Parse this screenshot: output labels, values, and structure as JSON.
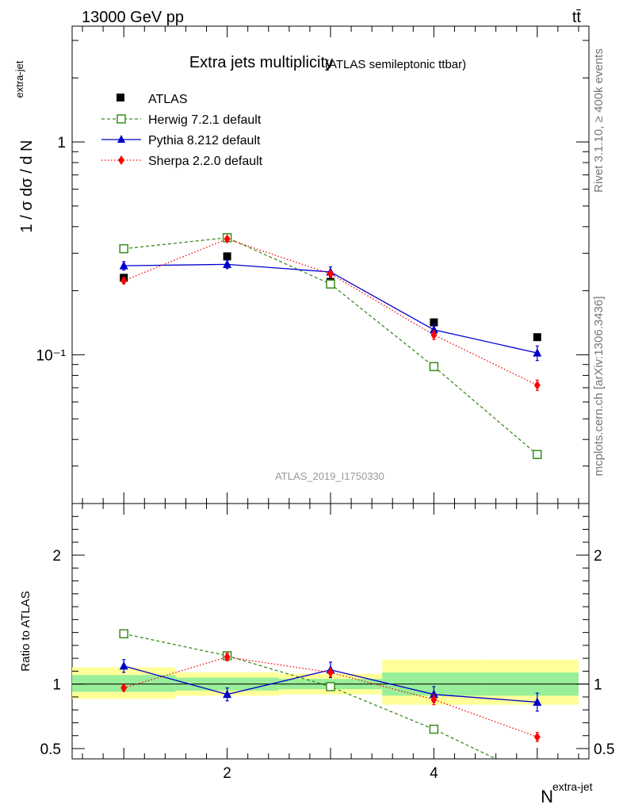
{
  "header": {
    "energy": "13000 GeV pp",
    "process": "tt̄"
  },
  "side_labels": {
    "rivet": "Rivet 3.1.10, ≥ 400k events",
    "mcplots": "mcplots.cern.ch [arXiv:1306.3436]"
  },
  "chart_data": [
    {
      "type": "line",
      "title": "Extra jets multiplicity",
      "subtitle": "(ATLAS semileptonic ttbar)",
      "ylabel_main": "1 / σ dσ / d N",
      "ylabel_sup": "extra-jet",
      "yscale": "log",
      "ylim": [
        0.02,
        3.5
      ],
      "xlim": [
        0.5,
        5.5
      ],
      "y_tick_labels": [
        "1",
        "10⁻¹"
      ],
      "y_ticks": [
        1,
        0.1
      ],
      "watermark": "ATLAS_2019_I1750330",
      "x": [
        1,
        2,
        3,
        4,
        5
      ],
      "series": [
        {
          "name": "ATLAS",
          "color": "#000000",
          "marker": "square-filled",
          "line": "none",
          "values": [
            0.23,
            0.29,
            0.22,
            0.142,
            0.121
          ],
          "errors": [
            0.006,
            0.006,
            0.005,
            0.004,
            0.004
          ]
        },
        {
          "name": "Herwig 7.2.1 default",
          "color": "#3a8c1f",
          "marker": "square-open",
          "line": "dashed",
          "values": [
            0.315,
            0.355,
            0.215,
            0.088,
            0.034
          ],
          "errors": [
            0.006,
            0.006,
            0.005,
            0.003,
            0.0015
          ]
        },
        {
          "name": "Pythia 8.212 default",
          "color": "#0000cc",
          "marker": "triangle",
          "line": "solid",
          "values": [
            0.262,
            0.266,
            0.245,
            0.131,
            0.102
          ],
          "errors": [
            0.012,
            0.012,
            0.014,
            0.008,
            0.008
          ]
        },
        {
          "name": "Sherpa 2.2.0 default",
          "color": "#ff0000",
          "marker": "diamond",
          "line": "dotted",
          "values": [
            0.223,
            0.35,
            0.24,
            0.124,
            0.072
          ],
          "errors": [
            0.007,
            0.008,
            0.008,
            0.006,
            0.004
          ]
        }
      ]
    },
    {
      "type": "line",
      "title": "",
      "ylabel": "Ratio to ATLAS",
      "xlabel": "N",
      "xlabel_sup": "extra-jet",
      "ylim": [
        0.42,
        2.4
      ],
      "xlim": [
        0.5,
        5.5
      ],
      "y_ticks": [
        0.5,
        1,
        2
      ],
      "y_tick_labels": [
        "0.5",
        "1",
        "2"
      ],
      "x_ticks": [
        2,
        4
      ],
      "x_tick_labels": [
        "2",
        "4"
      ],
      "bands": [
        {
          "x_range": [
            0.5,
            1.5
          ],
          "inner": [
            0.94,
            1.07
          ],
          "outer": [
            0.885,
            1.13
          ]
        },
        {
          "x_range": [
            1.5,
            2.5
          ],
          "inner": [
            0.95,
            1.05
          ],
          "outer": [
            0.91,
            1.09
          ]
        },
        {
          "x_range": [
            2.5,
            3.5
          ],
          "inner": [
            0.96,
            1.04
          ],
          "outer": [
            0.92,
            1.08
          ]
        },
        {
          "x_range": [
            3.5,
            4.5
          ],
          "inner": [
            0.91,
            1.09
          ],
          "outer": [
            0.84,
            1.19
          ]
        },
        {
          "x_range": [
            4.5,
            5.4
          ],
          "inner": [
            0.91,
            1.09
          ],
          "outer": [
            0.84,
            1.19
          ]
        }
      ],
      "x": [
        1,
        2,
        3,
        4,
        5
      ],
      "series": [
        {
          "name": "Herwig 7.2.1 default",
          "color": "#3a8c1f",
          "marker": "square-open",
          "line": "dashed",
          "x": [
            1,
            2,
            3,
            4,
            4.6
          ],
          "values": [
            1.39,
            1.22,
            0.98,
            0.65,
            0.42
          ],
          "errors": [
            0.01,
            0.015,
            0.01,
            0.015,
            0
          ]
        },
        {
          "name": "Pythia 8.212 default",
          "color": "#0000cc",
          "marker": "triangle",
          "line": "solid",
          "x": [
            1,
            2,
            3,
            4,
            5
          ],
          "values": [
            1.14,
            0.92,
            1.11,
            0.92,
            0.86
          ],
          "errors": [
            0.05,
            0.05,
            0.06,
            0.06,
            0.07
          ]
        },
        {
          "name": "Sherpa 2.2.0 default",
          "color": "#ff0000",
          "marker": "diamond",
          "line": "dotted",
          "x": [
            1,
            2,
            3,
            4,
            5
          ],
          "values": [
            0.97,
            1.21,
            1.09,
            0.88,
            0.59
          ],
          "errors": [
            0.025,
            0.03,
            0.035,
            0.04,
            0.035
          ]
        }
      ]
    }
  ]
}
